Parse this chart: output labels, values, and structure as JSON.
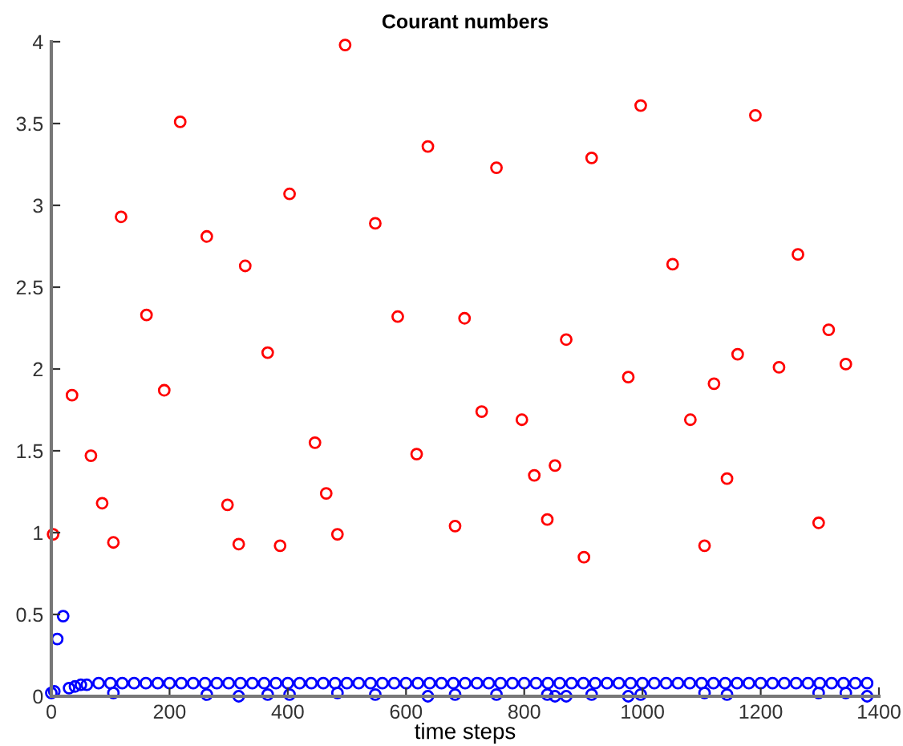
{
  "chart_data": {
    "type": "scatter",
    "title": "Courant numbers",
    "xlabel": "time steps",
    "xlim": [
      0,
      1400
    ],
    "ylim": [
      0,
      4
    ],
    "xticks": [
      0,
      200,
      400,
      600,
      800,
      1000,
      1200,
      1400
    ],
    "yticks": [
      0,
      0.5,
      1,
      1.5,
      2,
      2.5,
      3,
      3.5,
      4
    ],
    "grid": false,
    "marker": "circle",
    "series": [
      {
        "color": "#ff0000",
        "x": [
          3,
          35,
          67,
          86,
          105,
          118,
          161,
          191,
          218,
          263,
          298,
          317,
          328,
          366,
          387,
          403,
          446,
          465,
          484,
          497,
          548,
          586,
          618,
          637,
          683,
          699,
          728,
          753,
          796,
          817,
          839,
          852,
          871,
          901,
          914,
          976,
          997,
          1051,
          1081,
          1105,
          1121,
          1143,
          1161,
          1191,
          1231,
          1263,
          1298,
          1315,
          1344
        ],
        "values": [
          0.99,
          1.84,
          1.47,
          1.18,
          0.94,
          2.93,
          2.33,
          1.87,
          3.51,
          2.81,
          1.17,
          0.93,
          2.63,
          2.1,
          0.92,
          3.07,
          1.55,
          1.24,
          0.99,
          3.98,
          2.89,
          2.32,
          1.48,
          3.36,
          1.04,
          2.31,
          1.74,
          3.23,
          1.69,
          1.35,
          1.08,
          1.41,
          2.18,
          0.85,
          3.29,
          1.95,
          3.61,
          2.64,
          1.69,
          0.92,
          1.91,
          1.33,
          2.09,
          3.55,
          2.01,
          2.7,
          1.06,
          2.24,
          2.03
        ]
      },
      {
        "color": "#0000ff",
        "x": [
          0,
          5,
          10,
          20,
          30,
          40,
          50,
          60,
          80,
          100,
          120,
          140,
          160,
          180,
          200,
          220,
          240,
          260,
          280,
          300,
          320,
          340,
          360,
          380,
          400,
          420,
          440,
          460,
          480,
          500,
          520,
          540,
          560,
          580,
          600,
          620,
          640,
          660,
          680,
          700,
          720,
          740,
          760,
          780,
          800,
          820,
          840,
          860,
          880,
          900,
          920,
          940,
          960,
          980,
          1000,
          1020,
          1040,
          1060,
          1080,
          1100,
          1120,
          1140,
          1160,
          1180,
          1200,
          1220,
          1240,
          1260,
          1280,
          1300,
          1320,
          1340,
          1360,
          1380,
          105,
          263,
          317,
          366,
          403,
          484,
          548,
          637,
          683,
          753,
          839,
          852,
          871,
          914,
          976,
          997,
          1105,
          1143,
          1298,
          1344,
          1380
        ],
        "values": [
          0.02,
          0.03,
          0.35,
          0.49,
          0.05,
          0.06,
          0.07,
          0.07,
          0.08,
          0.08,
          0.08,
          0.08,
          0.08,
          0.08,
          0.08,
          0.08,
          0.08,
          0.08,
          0.08,
          0.08,
          0.08,
          0.08,
          0.08,
          0.08,
          0.08,
          0.08,
          0.08,
          0.08,
          0.08,
          0.08,
          0.08,
          0.08,
          0.08,
          0.08,
          0.08,
          0.08,
          0.08,
          0.08,
          0.08,
          0.08,
          0.08,
          0.08,
          0.08,
          0.08,
          0.08,
          0.08,
          0.08,
          0.08,
          0.08,
          0.08,
          0.08,
          0.08,
          0.08,
          0.08,
          0.08,
          0.08,
          0.08,
          0.08,
          0.08,
          0.08,
          0.08,
          0.08,
          0.08,
          0.08,
          0.08,
          0.08,
          0.08,
          0.08,
          0.08,
          0.08,
          0.08,
          0.08,
          0.08,
          0.08,
          0.02,
          0.01,
          0.0,
          0.01,
          0.01,
          0.02,
          0.01,
          0.0,
          0.01,
          0.01,
          0.01,
          0.0,
          0.0,
          0.01,
          0.0,
          0.01,
          0.02,
          0.01,
          0.02,
          0.02,
          0.0
        ]
      }
    ]
  }
}
